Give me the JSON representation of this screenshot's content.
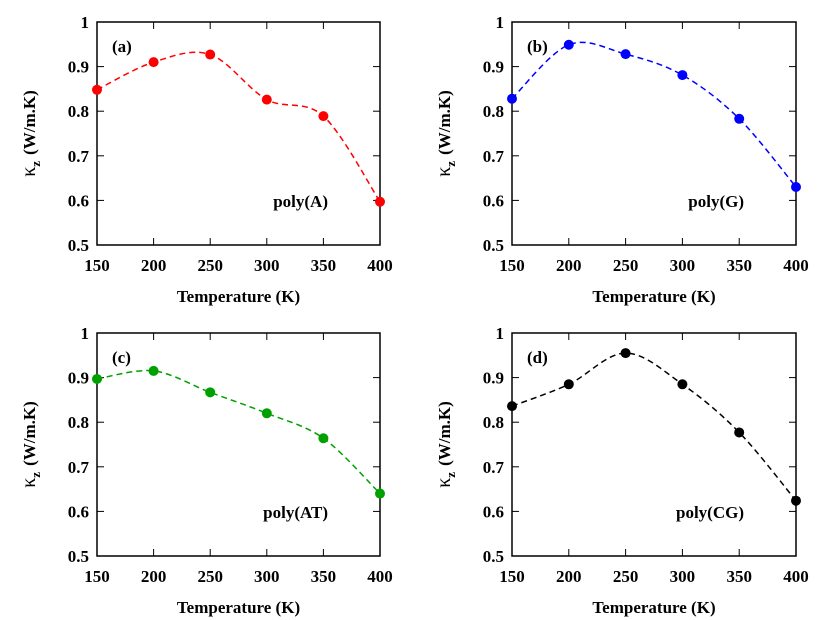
{
  "chart_data": [
    {
      "type": "line",
      "panel_label": "(a)",
      "annotation": "poly(A)",
      "xlabel": "Temperature (K)",
      "ylabel": [
        "κ",
        "z",
        "(W/m.K)"
      ],
      "x": [
        150,
        200,
        250,
        300,
        350,
        400
      ],
      "values": [
        0.848,
        0.91,
        0.927,
        0.826,
        0.789,
        0.597
      ],
      "color": "#ff0000",
      "xlim": [
        150,
        400
      ],
      "ylim": [
        0.5,
        1
      ],
      "xticks": [
        150,
        200,
        250,
        300,
        350,
        400
      ],
      "yticks": [
        0.5,
        0.6,
        0.7,
        0.8,
        0.9,
        1
      ]
    },
    {
      "type": "line",
      "panel_label": "(b)",
      "annotation": "poly(G)",
      "xlabel": "Temperature (K)",
      "ylabel": [
        "κ",
        "z",
        "(W/m.K)"
      ],
      "x": [
        150,
        200,
        250,
        300,
        350,
        400
      ],
      "values": [
        0.828,
        0.949,
        0.928,
        0.881,
        0.783,
        0.63
      ],
      "color": "#0000ff",
      "xlim": [
        150,
        400
      ],
      "ylim": [
        0.5,
        1
      ],
      "xticks": [
        150,
        200,
        250,
        300,
        350,
        400
      ],
      "yticks": [
        0.5,
        0.6,
        0.7,
        0.8,
        0.9,
        1
      ]
    },
    {
      "type": "line",
      "panel_label": "(c)",
      "annotation": "poly(AT)",
      "xlabel": "Temperature (K)",
      "ylabel": [
        "κ",
        "z",
        "(W/m.K)"
      ],
      "x": [
        150,
        200,
        250,
        300,
        350,
        400
      ],
      "values": [
        0.897,
        0.915,
        0.867,
        0.82,
        0.764,
        0.64
      ],
      "color": "#00a000",
      "xlim": [
        150,
        400
      ],
      "ylim": [
        0.5,
        1
      ],
      "xticks": [
        150,
        200,
        250,
        300,
        350,
        400
      ],
      "yticks": [
        0.5,
        0.6,
        0.7,
        0.8,
        0.9,
        1
      ]
    },
    {
      "type": "line",
      "panel_label": "(d)",
      "annotation": "poly(CG)",
      "xlabel": "Temperature (K)",
      "ylabel": [
        "κ",
        "z",
        "(W/m.K)"
      ],
      "x": [
        150,
        200,
        250,
        300,
        350,
        400
      ],
      "values": [
        0.836,
        0.885,
        0.955,
        0.885,
        0.777,
        0.624
      ],
      "color": "#000000",
      "xlim": [
        150,
        400
      ],
      "ylim": [
        0.5,
        1
      ],
      "xticks": [
        150,
        200,
        250,
        300,
        350,
        400
      ],
      "yticks": [
        0.5,
        0.6,
        0.7,
        0.8,
        0.9,
        1
      ]
    }
  ]
}
